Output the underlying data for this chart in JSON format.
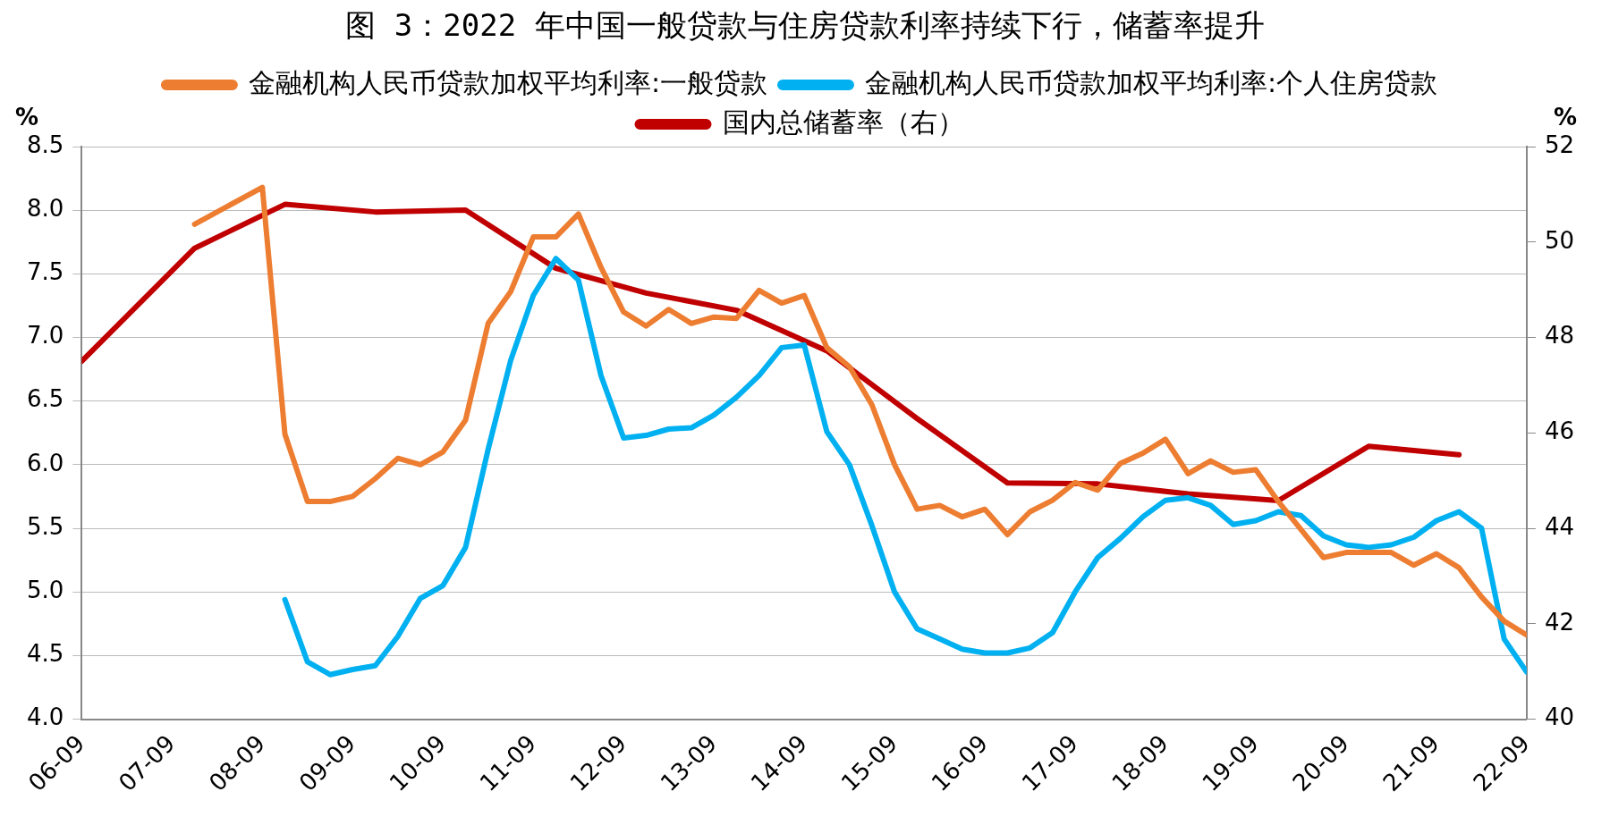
{
  "chart_data": {
    "type": "line",
    "title": "图 3：2022 年中国一般贷款与住房贷款利率持续下行，储蓄率提升",
    "ylabel": "%",
    "y2label": "%",
    "xlim": [
      "2006-09",
      "2022-09"
    ],
    "xticks": [
      {
        "value": "2006-09",
        "label": "06-09"
      },
      {
        "value": "2007-09",
        "label": "07-09"
      },
      {
        "value": "2008-09",
        "label": "08-09"
      },
      {
        "value": "2009-09",
        "label": "09-09"
      },
      {
        "value": "2010-09",
        "label": "10-09"
      },
      {
        "value": "2011-09",
        "label": "11-09"
      },
      {
        "value": "2012-09",
        "label": "12-09"
      },
      {
        "value": "2013-09",
        "label": "13-09"
      },
      {
        "value": "2014-09",
        "label": "14-09"
      },
      {
        "value": "2015-09",
        "label": "15-09"
      },
      {
        "value": "2016-09",
        "label": "16-09"
      },
      {
        "value": "2017-09",
        "label": "17-09"
      },
      {
        "value": "2018-09",
        "label": "18-09"
      },
      {
        "value": "2019-09",
        "label": "19-09"
      },
      {
        "value": "2020-09",
        "label": "20-09"
      },
      {
        "value": "2021-09",
        "label": "21-09"
      },
      {
        "value": "2022-09",
        "label": "22-09"
      }
    ],
    "ylim": [
      4.0,
      8.5
    ],
    "yticks": [
      {
        "value": 4.0,
        "label": "4.0"
      },
      {
        "value": 4.5,
        "label": "4.5"
      },
      {
        "value": 5.0,
        "label": "5.0"
      },
      {
        "value": 5.5,
        "label": "5.5"
      },
      {
        "value": 6.0,
        "label": "6.0"
      },
      {
        "value": 6.5,
        "label": "6.5"
      },
      {
        "value": 7.0,
        "label": "7.0"
      },
      {
        "value": 7.5,
        "label": "7.5"
      },
      {
        "value": 8.0,
        "label": "8.0"
      },
      {
        "value": 8.5,
        "label": "8.5"
      }
    ],
    "y2lim": [
      40,
      52
    ],
    "y2ticks": [
      {
        "value": 40,
        "label": "40"
      },
      {
        "value": 42,
        "label": "42"
      },
      {
        "value": 44,
        "label": "44"
      },
      {
        "value": 46,
        "label": "46"
      },
      {
        "value": 48,
        "label": "48"
      },
      {
        "value": 50,
        "label": "50"
      },
      {
        "value": 52,
        "label": "52"
      }
    ],
    "grid": "y",
    "legend": "top",
    "line_style": "solid",
    "marker": "none",
    "series": [
      {
        "name": "金融机构人民币贷款加权平均利率:一般贷款",
        "color": "#ed7d31",
        "x": [
          "2007-12",
          "2008-09",
          "2008-12",
          "2009-03",
          "2009-06",
          "2009-09",
          "2009-12",
          "2010-03",
          "2010-06",
          "2010-09",
          "2010-12",
          "2011-03",
          "2011-06",
          "2011-09",
          "2011-12",
          "2012-03",
          "2012-06",
          "2012-09",
          "2012-12",
          "2013-03",
          "2013-06",
          "2013-09",
          "2013-12",
          "2014-03",
          "2014-06",
          "2014-09",
          "2014-12",
          "2015-03",
          "2015-06",
          "2015-09",
          "2015-12",
          "2016-03",
          "2016-06",
          "2016-09",
          "2016-12",
          "2017-03",
          "2017-06",
          "2017-09",
          "2017-12",
          "2018-03",
          "2018-06",
          "2018-09",
          "2018-12",
          "2019-03",
          "2019-06",
          "2019-09",
          "2019-12",
          "2020-03",
          "2020-06",
          "2020-09",
          "2020-12",
          "2021-03",
          "2021-06",
          "2021-09",
          "2021-12",
          "2022-03",
          "2022-06",
          "2022-09"
        ],
        "values": [
          7.89,
          8.18,
          6.24,
          5.71,
          5.71,
          5.75,
          5.89,
          6.05,
          6.0,
          6.1,
          6.35,
          7.11,
          7.36,
          7.79,
          7.79,
          7.97,
          7.55,
          7.2,
          7.09,
          7.22,
          7.11,
          7.16,
          7.15,
          7.37,
          7.27,
          7.33,
          6.92,
          6.77,
          6.47,
          6.0,
          5.65,
          5.68,
          5.59,
          5.65,
          5.45,
          5.63,
          5.72,
          5.86,
          5.8,
          6.01,
          6.09,
          6.2,
          5.93,
          6.03,
          5.94,
          5.96,
          5.71,
          5.49,
          5.27,
          5.31,
          5.31,
          5.31,
          5.21,
          5.3,
          5.19,
          4.96,
          4.77,
          4.66
        ]
      },
      {
        "name": "金融机构人民币贷款加权平均利率:个人住房贷款",
        "color": "#00b0f0",
        "x": [
          "2008-12",
          "2009-03",
          "2009-06",
          "2009-09",
          "2009-12",
          "2010-03",
          "2010-06",
          "2010-09",
          "2010-12",
          "2011-03",
          "2011-06",
          "2011-09",
          "2011-12",
          "2012-03",
          "2012-06",
          "2012-09",
          "2012-12",
          "2013-03",
          "2013-06",
          "2013-09",
          "2013-12",
          "2014-03",
          "2014-06",
          "2014-09",
          "2014-12",
          "2015-03",
          "2015-06",
          "2015-09",
          "2015-12",
          "2016-03",
          "2016-06",
          "2016-09",
          "2016-12",
          "2017-03",
          "2017-06",
          "2017-09",
          "2017-12",
          "2018-03",
          "2018-06",
          "2018-09",
          "2018-12",
          "2019-03",
          "2019-06",
          "2019-09",
          "2019-12",
          "2020-03",
          "2020-06",
          "2020-09",
          "2020-12",
          "2021-03",
          "2021-06",
          "2021-09",
          "2021-12",
          "2022-03",
          "2022-06",
          "2022-09"
        ],
        "values": [
          4.94,
          4.45,
          4.35,
          4.39,
          4.42,
          4.65,
          4.95,
          5.05,
          5.35,
          6.12,
          6.82,
          7.33,
          7.62,
          7.45,
          6.7,
          6.21,
          6.23,
          6.28,
          6.29,
          6.39,
          6.53,
          6.7,
          6.92,
          6.94,
          6.26,
          6.0,
          5.52,
          5.0,
          4.71,
          4.63,
          4.55,
          4.52,
          4.52,
          4.56,
          4.68,
          5.0,
          5.27,
          5.42,
          5.59,
          5.72,
          5.74,
          5.68,
          5.53,
          5.56,
          5.63,
          5.6,
          5.44,
          5.37,
          5.35,
          5.37,
          5.43,
          5.56,
          5.63,
          5.5,
          4.63,
          4.37
        ]
      },
      {
        "name": "国内总储蓄率（右）",
        "color": "#c00000",
        "axis": "y2",
        "x": [
          "2006-09",
          "2007-12",
          "2008-12",
          "2009-12",
          "2010-12",
          "2011-12",
          "2012-12",
          "2013-12",
          "2014-12",
          "2015-12",
          "2016-12",
          "2017-12",
          "2018-12",
          "2019-12",
          "2020-12",
          "2021-12"
        ],
        "values": [
          47.5,
          49.87,
          50.79,
          50.63,
          50.67,
          49.45,
          48.93,
          48.57,
          47.72,
          46.3,
          44.95,
          44.93,
          44.72,
          44.58,
          45.72,
          45.54
        ]
      }
    ]
  }
}
